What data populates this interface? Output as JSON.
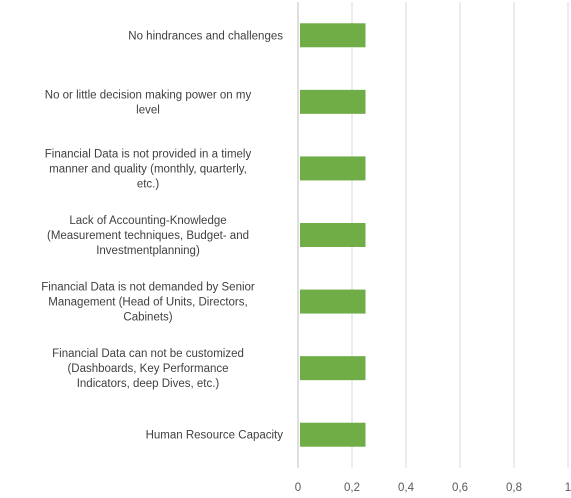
{
  "chart_data": {
    "type": "bar",
    "orientation": "horizontal",
    "categories": [
      [
        "No hindrances and challenges"
      ],
      [
        "No or little decision making power on my",
        "level"
      ],
      [
        "Financial Data is not provided in a timely",
        "manner and quality (monthly, quarterly,",
        "etc.)"
      ],
      [
        "Lack of Accounting-Knowledge",
        "(Measurement techniques, Budget- and",
        "Investmentplanning)"
      ],
      [
        "Financial Data is not demanded by Senior",
        "Management (Head of Units, Directors,",
        "Cabinets)"
      ],
      [
        "Financial Data can not be customized",
        "(Dashboards, Key Performance",
        "Indicators, deep Dives, etc.)"
      ],
      [
        "Human Resource Capacity"
      ]
    ],
    "series": [
      {
        "values": [
          0.25,
          0.25,
          0.25,
          0.25,
          0.25,
          0.25,
          0.25
        ],
        "color": "#70ad47"
      }
    ],
    "xlim": [
      0,
      1
    ],
    "xticks": [
      0,
      0.2,
      0.4,
      0.6,
      0.8,
      1
    ],
    "xtick_labels": [
      "0",
      "0,2",
      "0,4",
      "0,6",
      "0,8",
      "1"
    ],
    "grid": true,
    "legend": "none"
  }
}
